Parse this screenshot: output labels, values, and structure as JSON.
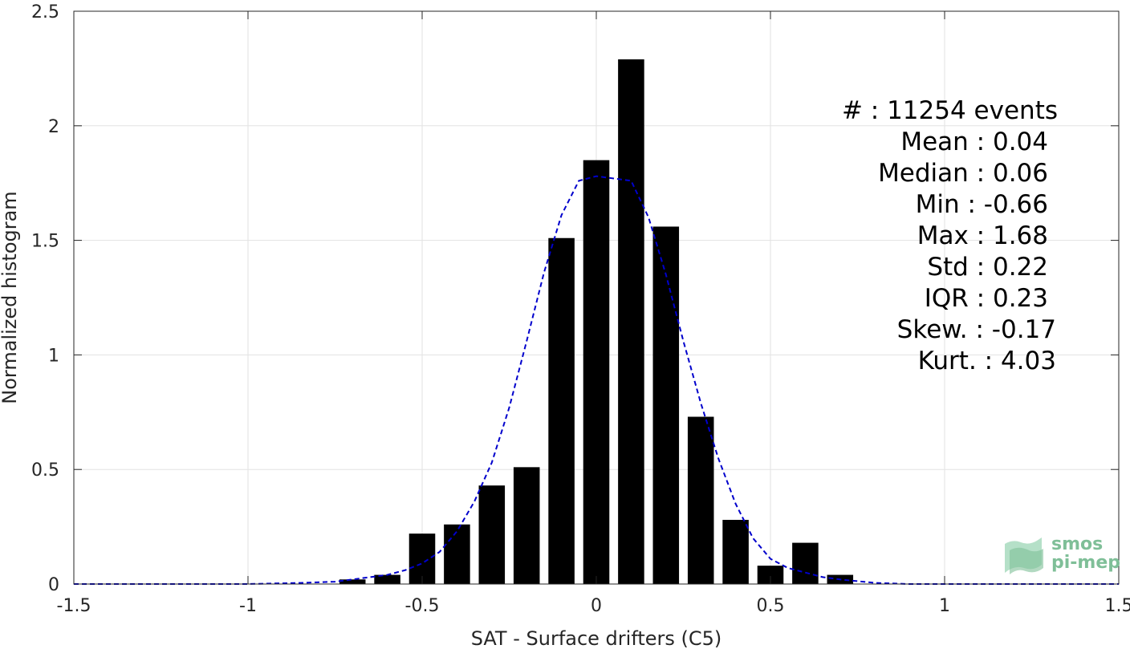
{
  "chart_data": {
    "type": "bar",
    "xlabel": "SAT - Surface drifters (C5)",
    "ylabel": "Normalized histogram",
    "xlim": [
      -1.5,
      1.5
    ],
    "ylim": [
      0,
      2.5
    ],
    "xticks": [
      "-1.5",
      "-1",
      "-0.5",
      "0",
      "0.5",
      "1",
      "1.5"
    ],
    "yticks": [
      "0",
      "0.5",
      "1",
      "1.5",
      "2",
      "2.5"
    ],
    "grid": true,
    "bar_color": "#000000",
    "bar_width": 0.075,
    "bars": [
      {
        "x": -0.7,
        "y": 0.02
      },
      {
        "x": -0.6,
        "y": 0.04
      },
      {
        "x": -0.5,
        "y": 0.22
      },
      {
        "x": -0.4,
        "y": 0.26
      },
      {
        "x": -0.3,
        "y": 0.43
      },
      {
        "x": -0.2,
        "y": 0.51
      },
      {
        "x": -0.1,
        "y": 1.51
      },
      {
        "x": 0.0,
        "y": 1.85
      },
      {
        "x": 0.1,
        "y": 2.29
      },
      {
        "x": 0.2,
        "y": 1.56
      },
      {
        "x": 0.3,
        "y": 0.73
      },
      {
        "x": 0.4,
        "y": 0.28
      },
      {
        "x": 0.5,
        "y": 0.08
      },
      {
        "x": 0.6,
        "y": 0.18
      },
      {
        "x": 0.7,
        "y": 0.04
      }
    ],
    "fit_curve": {
      "style": "dashed",
      "color": "#0000cc",
      "x": [
        -1.5,
        -1.0,
        -0.85,
        -0.75,
        -0.7,
        -0.6,
        -0.55,
        -0.5,
        -0.45,
        -0.4,
        -0.35,
        -0.3,
        -0.25,
        -0.2,
        -0.15,
        -0.1,
        -0.05,
        0.0,
        0.05,
        0.1,
        0.15,
        0.2,
        0.25,
        0.3,
        0.35,
        0.4,
        0.45,
        0.5,
        0.55,
        0.6,
        0.65,
        0.7,
        0.8,
        0.9,
        1.0,
        1.5
      ],
      "y": [
        0.0,
        0.0,
        0.005,
        0.01,
        0.02,
        0.04,
        0.06,
        0.09,
        0.14,
        0.23,
        0.36,
        0.53,
        0.77,
        1.06,
        1.36,
        1.61,
        1.76,
        1.78,
        1.77,
        1.76,
        1.6,
        1.35,
        1.06,
        0.79,
        0.55,
        0.35,
        0.2,
        0.11,
        0.07,
        0.05,
        0.03,
        0.02,
        0.005,
        0.0,
        0.0,
        0.0
      ]
    },
    "stats": [
      "#  : 11254 events",
      "Mean : 0.04",
      "Median : 0.06",
      "Min : -0.66",
      "Max : 1.68",
      "Std : 0.22",
      "IQR : 0.23",
      "Skew. : -0.17",
      "Kurt. : 4.03"
    ]
  },
  "logo": {
    "line1": "smos",
    "line2": "pi-mep",
    "color": "#7fbf98"
  }
}
